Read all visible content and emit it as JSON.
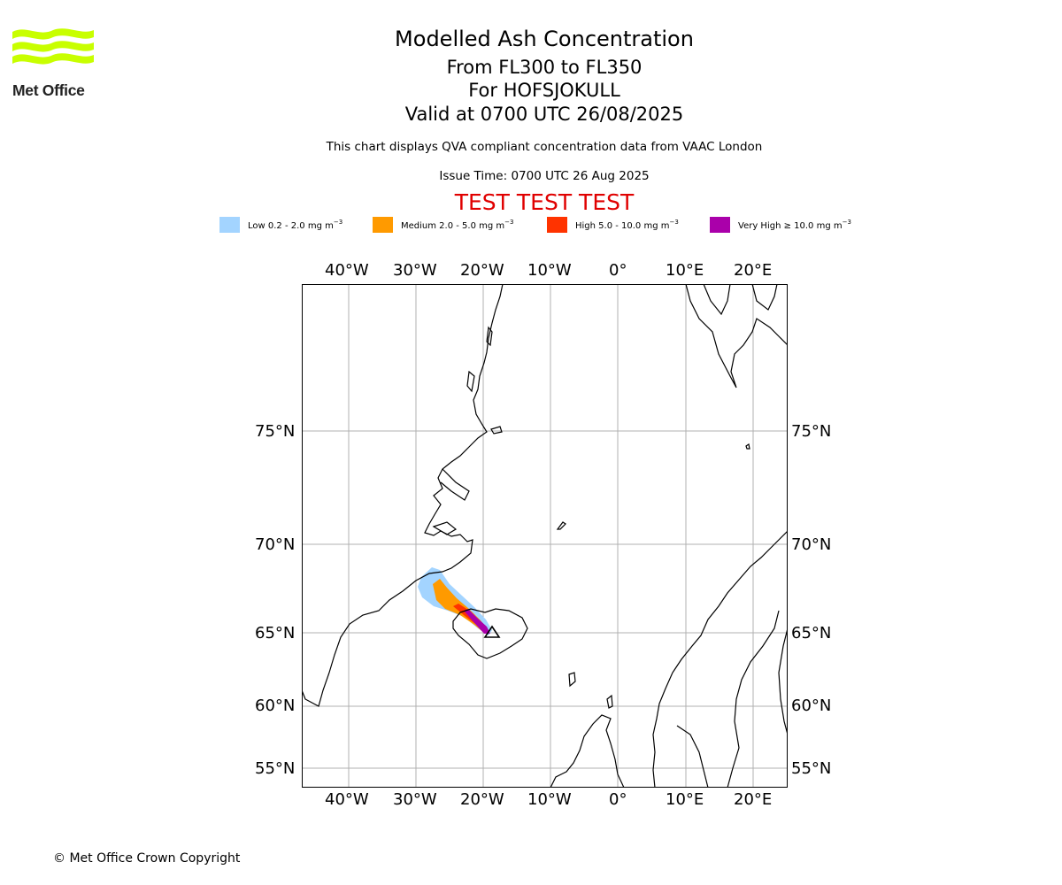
{
  "logo": {
    "text": "Met Office",
    "color": "#c8ff00"
  },
  "header": {
    "title": "Modelled Ash Concentration",
    "range": "From FL300 to FL350",
    "volcano": "For HOFSJOKULL",
    "valid": "Valid at 0700 UTC 26/08/2025",
    "description": "This chart displays QVA compliant concentration data from VAAC London",
    "issue_time": "Issue Time: 0700 UTC 26 Aug 2025",
    "test_banner": "TEST TEST TEST"
  },
  "legend": [
    {
      "name": "Low",
      "range": "Low 0.2 - 2.0 mg m",
      "color": "#a3d4ff"
    },
    {
      "name": "Medium",
      "range": "Medium 2.0 - 5.0 mg m",
      "color": "#ff9a00"
    },
    {
      "name": "High",
      "range": "High 5.0 - 10.0 mg m",
      "color": "#ff3300"
    },
    {
      "name": "Very High",
      "range": "Very High  ≥  10.0 mg m",
      "color": "#aa00aa"
    }
  ],
  "legend_unit_exponent": "−3",
  "map": {
    "projection": "stereographic",
    "lon_ticks": [
      "40°W",
      "30°W",
      "20°W",
      "10°W",
      "0°",
      "10°E",
      "20°E"
    ],
    "lat_ticks": [
      "75°N",
      "70°N",
      "65°N",
      "60°N",
      "55°N"
    ],
    "grid": true,
    "ash_colors": {
      "low": "#a3d4ff",
      "medium": "#ff9a00",
      "high": "#ff3300",
      "very_high": "#aa00aa"
    }
  },
  "footer": {
    "copyright": "© Met Office Crown Copyright"
  }
}
